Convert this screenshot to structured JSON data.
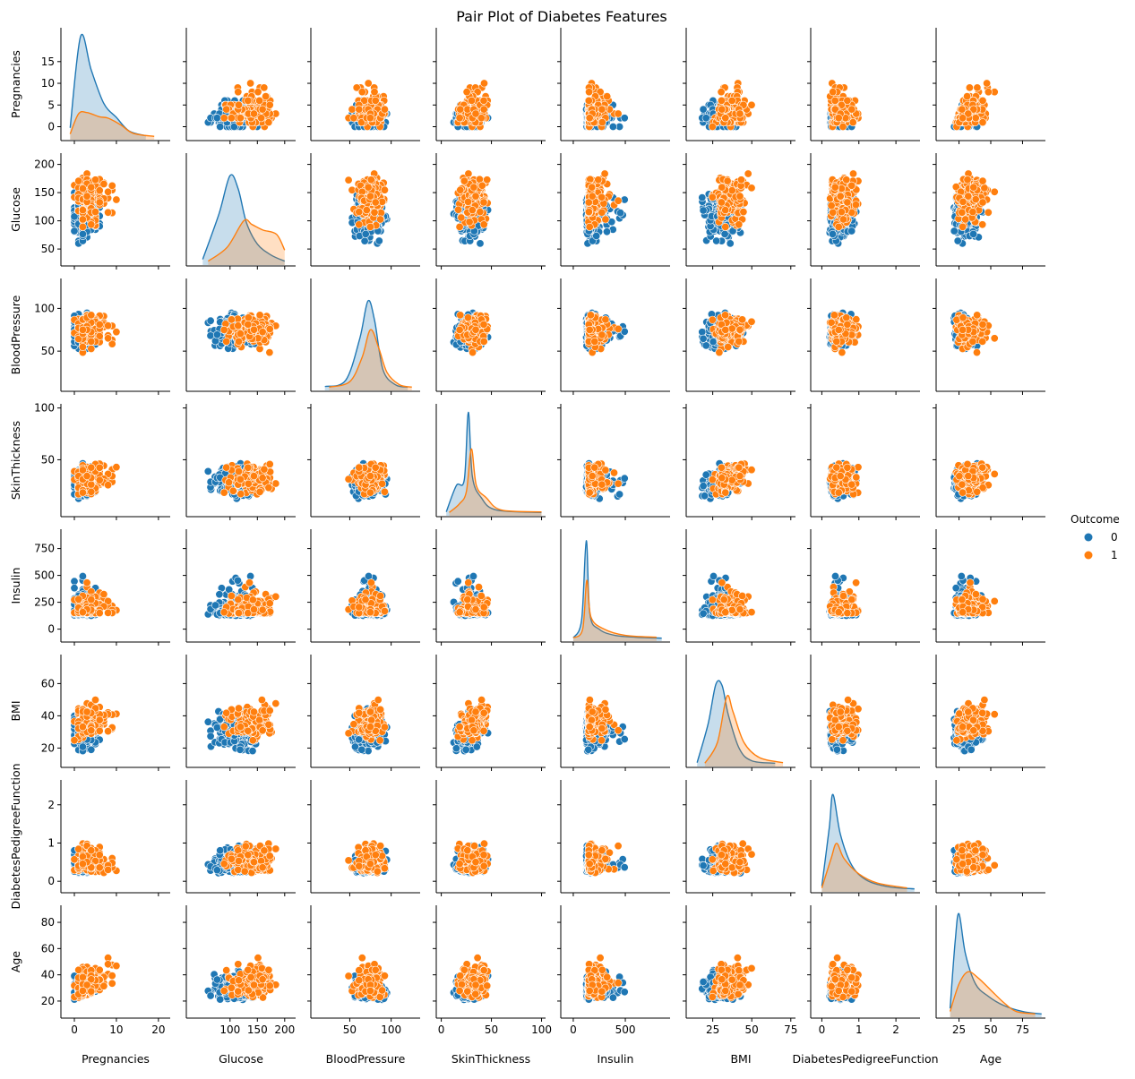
{
  "chart_data": {
    "type": "pairplot",
    "title": "Pair Plot of Diabetes Features",
    "hue": "Outcome",
    "legend": {
      "title": "Outcome",
      "placement": "right",
      "entries": [
        {
          "label": "0",
          "color": "#1f77b4"
        },
        {
          "label": "1",
          "color": "#ff7f0e"
        }
      ]
    },
    "variables": [
      {
        "name": "Pregnancies",
        "range": [
          -3.2,
          22.8
        ],
        "ticks": [
          0,
          10,
          20
        ],
        "yticks": [
          0,
          5,
          10,
          15
        ],
        "kde0": [
          [
            -1,
            1.5
          ],
          [
            1.5,
            16.5
          ],
          [
            4,
            11
          ],
          [
            7,
            5.5
          ],
          [
            10,
            3.2
          ],
          [
            13,
            1
          ],
          [
            17,
            0.2
          ]
        ],
        "kde1": [
          [
            -1,
            0.5
          ],
          [
            1,
            3.8
          ],
          [
            3,
            4
          ],
          [
            6,
            3.3
          ],
          [
            8,
            3.1
          ],
          [
            11,
            2
          ],
          [
            14,
            0.6
          ],
          [
            19,
            0.1
          ]
        ]
      },
      {
        "name": "Glucose",
        "range": [
          20,
          220
        ],
        "ticks": [
          100,
          150,
          200
        ],
        "yticks": [
          50,
          100,
          150,
          200
        ],
        "kde0": [
          [
            50,
            0.5
          ],
          [
            80,
            8
          ],
          [
            100,
            14.2
          ],
          [
            115,
            12
          ],
          [
            130,
            6.5
          ],
          [
            150,
            3
          ],
          [
            175,
            1.2
          ],
          [
            200,
            0.2
          ]
        ],
        "kde1": [
          [
            60,
            0.2
          ],
          [
            95,
            2.5
          ],
          [
            125,
            6.8
          ],
          [
            140,
            6.2
          ],
          [
            160,
            5.3
          ],
          [
            185,
            4.6
          ],
          [
            200,
            2
          ]
        ]
      },
      {
        "name": "BloodPressure",
        "range": [
          3,
          135
        ],
        "ticks": [
          50,
          100
        ],
        "yticks": [
          50,
          100
        ],
        "kde0": [
          [
            20,
            0.2
          ],
          [
            45,
            1.2
          ],
          [
            62,
            8
          ],
          [
            72,
            14.2
          ],
          [
            80,
            11
          ],
          [
            90,
            3
          ],
          [
            105,
            0.5
          ],
          [
            120,
            0.1
          ]
        ],
        "kde1": [
          [
            25,
            0.1
          ],
          [
            50,
            1
          ],
          [
            65,
            5
          ],
          [
            75,
            9.5
          ],
          [
            85,
            6.5
          ],
          [
            95,
            2.5
          ],
          [
            110,
            0.5
          ],
          [
            125,
            0.1
          ]
        ]
      },
      {
        "name": "SkinThickness",
        "range": [
          -5,
          104
        ],
        "ticks": [
          0,
          50,
          100
        ],
        "yticks": [
          50,
          100
        ],
        "kde0": [
          [
            5,
            0.2
          ],
          [
            15,
            4.5
          ],
          [
            23,
            5.5
          ],
          [
            27,
            16.5
          ],
          [
            31,
            6
          ],
          [
            40,
            2.5
          ],
          [
            55,
            0.5
          ],
          [
            100,
            0.1
          ]
        ],
        "kde1": [
          [
            8,
            0.1
          ],
          [
            18,
            1.5
          ],
          [
            25,
            3.5
          ],
          [
            30,
            10.5
          ],
          [
            35,
            4.5
          ],
          [
            45,
            2.5
          ],
          [
            60,
            0.5
          ],
          [
            100,
            0.2
          ]
        ]
      },
      {
        "name": "Insulin",
        "range": [
          -120,
          930
        ],
        "ticks": [
          0,
          500
        ],
        "yticks": [
          0,
          250,
          500,
          750
        ],
        "kde0": [
          [
            0,
            0.1
          ],
          [
            80,
            3
          ],
          [
            125,
            16
          ],
          [
            160,
            4
          ],
          [
            250,
            1.5
          ],
          [
            400,
            0.5
          ],
          [
            600,
            0.2
          ],
          [
            850,
            0.05
          ]
        ],
        "kde1": [
          [
            0,
            0.1
          ],
          [
            90,
            1.5
          ],
          [
            130,
            9.5
          ],
          [
            170,
            3.5
          ],
          [
            300,
            1.5
          ],
          [
            500,
            0.5
          ],
          [
            800,
            0.2
          ]
        ]
      },
      {
        "name": "BMI",
        "range": [
          8,
          78
        ],
        "ticks": [
          25,
          50,
          75
        ],
        "yticks": [
          20,
          40,
          60
        ],
        "kde0": [
          [
            15,
            0.2
          ],
          [
            22,
            6.5
          ],
          [
            27,
            13
          ],
          [
            31,
            12.8
          ],
          [
            35,
            8
          ],
          [
            42,
            2.5
          ],
          [
            50,
            0.5
          ],
          [
            65,
            0.1
          ]
        ],
        "kde1": [
          [
            20,
            0.1
          ],
          [
            28,
            3.5
          ],
          [
            34,
            11
          ],
          [
            38,
            8.5
          ],
          [
            45,
            3.5
          ],
          [
            55,
            1
          ],
          [
            70,
            0.2
          ]
        ]
      },
      {
        "name": "DiabetesPedigreeFunction",
        "range": [
          -0.3,
          2.65
        ],
        "ticks": [
          0,
          1,
          2
        ],
        "yticks": [
          0,
          1,
          2
        ],
        "kde0": [
          [
            0,
            0.5
          ],
          [
            0.2,
            10
          ],
          [
            0.3,
            15.5
          ],
          [
            0.5,
            9
          ],
          [
            0.8,
            4
          ],
          [
            1.2,
            1.5
          ],
          [
            1.8,
            0.4
          ],
          [
            2.5,
            0.05
          ]
        ],
        "kde1": [
          [
            0,
            0.2
          ],
          [
            0.25,
            5
          ],
          [
            0.4,
            7.5
          ],
          [
            0.6,
            5
          ],
          [
            1,
            2.5
          ],
          [
            1.5,
            1
          ],
          [
            2.3,
            0.2
          ]
        ]
      },
      {
        "name": "Age",
        "range": [
          7,
          93
        ],
        "ticks": [
          25,
          50,
          75
        ],
        "yticks": [
          20,
          40,
          60,
          80
        ],
        "kde0": [
          [
            18,
            1
          ],
          [
            22,
            12
          ],
          [
            25,
            16.5
          ],
          [
            30,
            10
          ],
          [
            38,
            5
          ],
          [
            48,
            3
          ],
          [
            60,
            1.5
          ],
          [
            75,
            0.5
          ],
          [
            90,
            0.1
          ]
        ],
        "kde1": [
          [
            18,
            0.5
          ],
          [
            25,
            5
          ],
          [
            32,
            7
          ],
          [
            40,
            6
          ],
          [
            50,
            4
          ],
          [
            60,
            2
          ],
          [
            70,
            0.5
          ],
          [
            85,
            0.1
          ]
        ]
      }
    ],
    "n_points_per_panel": {
      "outcome_0": 260,
      "outcome_1": 150
    }
  }
}
